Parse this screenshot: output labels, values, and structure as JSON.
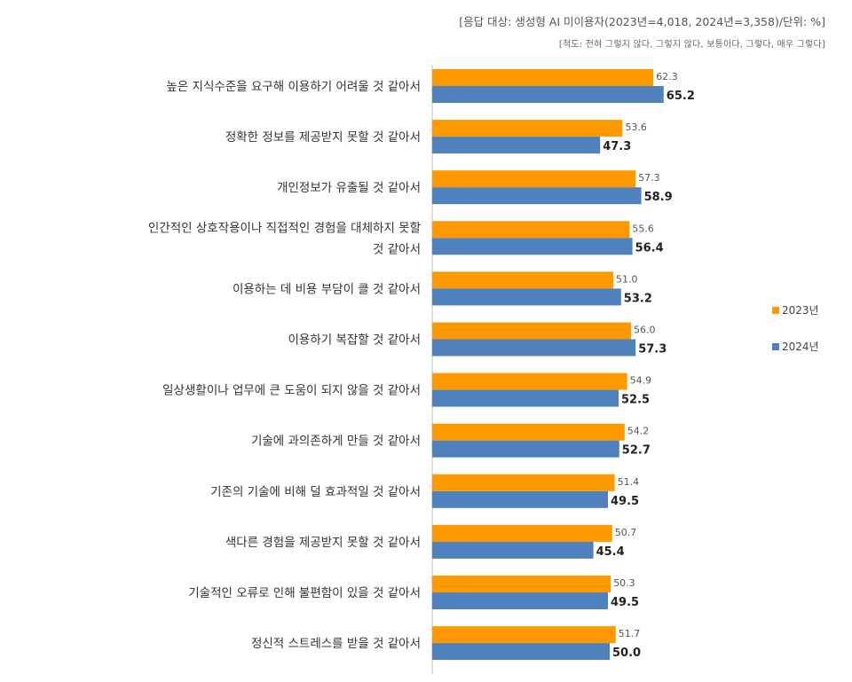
{
  "header": {
    "note": "[응답 대상: 생성형 AI 미이용자(2023년=4,018, 2024년=3,358)/단위: %]",
    "scale": "[척도: 전혀 그렇지 않다, 그렇지 않다, 보통이다, 그렇다, 매우 그렇다]"
  },
  "colors": {
    "series_2023": "#FF9900",
    "series_2024": "#4F81BD",
    "axis": "#BFBFBF"
  },
  "chart_data": {
    "type": "bar",
    "orientation": "horizontal",
    "title": "",
    "xlabel": "",
    "ylabel": "",
    "xlim": [
      0,
      100
    ],
    "grid": false,
    "legend_position": "right",
    "categories": [
      [
        "높은 지식수준을 요구해 이용하기 어려울 것 같아서"
      ],
      [
        "정확한 정보를 제공받지 못할 것 같아서"
      ],
      [
        "개인정보가 유출될 것 같아서"
      ],
      [
        "인간적인 상호작용이나 직접적인 경험을 대체하지 못할",
        "것 같아서"
      ],
      [
        "이용하는 데 비용 부담이 클 것 같아서"
      ],
      [
        "이용하기 복잡할 것 같아서"
      ],
      [
        "일상생활이나 업무에 큰 도움이 되지 않을 것 같아서"
      ],
      [
        "기술에 과의존하게 만들 것 같아서"
      ],
      [
        "기존의 기술에 비해 덜 효과적일 것 같아서"
      ],
      [
        "색다른 경험을 제공받지 못할 것 같아서"
      ],
      [
        "기술적인 오류로 인해 불편함이 있을 것 같아서"
      ],
      [
        "정신적 스트레스를 받을 것 같아서"
      ]
    ],
    "series": [
      {
        "name": "2023년",
        "values": [
          62.3,
          53.6,
          57.3,
          55.6,
          51.0,
          56.0,
          54.9,
          54.2,
          51.4,
          50.7,
          50.3,
          51.7
        ],
        "labels": [
          "62.3",
          "53.6",
          "57.3",
          "55.6",
          "51.0",
          "56.0",
          "54.9",
          "54.2",
          "51.4",
          "50.7",
          "50.3",
          "51.7"
        ]
      },
      {
        "name": "2024년",
        "values": [
          65.2,
          47.3,
          58.9,
          56.4,
          53.2,
          57.3,
          52.5,
          52.7,
          49.5,
          45.4,
          49.5,
          50.0
        ],
        "labels": [
          "65.2",
          "47.3",
          "58.9",
          "56.4",
          "53.2",
          "57.3",
          "52.5",
          "52.7",
          "49.5",
          "45.4",
          "49.5",
          "50.0"
        ]
      }
    ]
  }
}
